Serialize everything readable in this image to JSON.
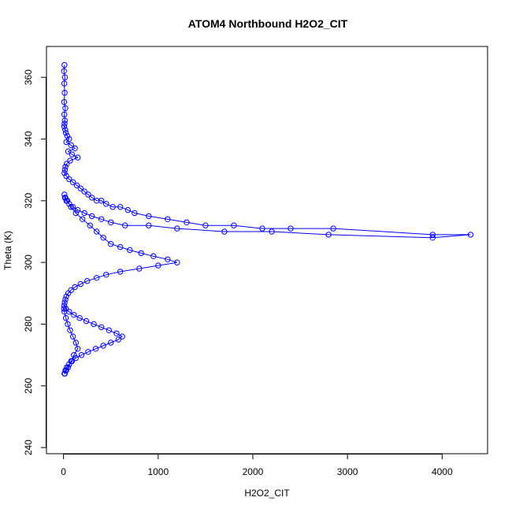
{
  "chart_data": {
    "type": "scatter",
    "title": "ATOM4 Northbound H2O2_CIT",
    "xlabel": "H2O2_CIT",
    "ylabel": "Theta (K)",
    "xlim": [
      -180,
      4480
    ],
    "ylim": [
      238,
      370
    ],
    "x_ticks": [
      0,
      1000,
      2000,
      3000,
      4000
    ],
    "y_ticks": [
      240,
      260,
      280,
      300,
      320,
      340,
      360
    ],
    "color": "#0000ff",
    "marker": "open-circle",
    "connected": true,
    "series": [
      {
        "x": [
          10,
          5,
          15,
          8,
          12,
          6,
          20,
          9,
          14,
          11,
          7,
          18,
          25,
          40,
          60,
          30,
          80,
          120,
          50,
          90,
          150,
          70,
          35,
          20,
          15,
          10,
          30,
          60,
          100,
          140,
          180,
          220,
          260,
          300,
          350,
          400,
          450,
          520,
          600,
          680,
          750,
          900,
          1100,
          1300,
          1500,
          1800,
          2100,
          2400,
          2850,
          3900,
          4300,
          3900,
          2800,
          2200,
          1700,
          1200,
          900,
          650,
          500,
          400,
          300,
          220,
          150,
          100,
          60,
          30,
          15,
          10,
          20,
          40,
          80,
          130,
          200,
          280,
          350,
          420,
          500,
          600,
          700,
          820,
          950,
          1100,
          1200,
          1000,
          800,
          600,
          450,
          350,
          250,
          180,
          120,
          80,
          50,
          30,
          20,
          12,
          8,
          25,
          60,
          110,
          170,
          240,
          320,
          400,
          480,
          560,
          620,
          580,
          500,
          420,
          340,
          260,
          190,
          130,
          90,
          60,
          35,
          20,
          10,
          15,
          30,
          50,
          80,
          110,
          150,
          130,
          100,
          70,
          45,
          25,
          10,
          5
        ],
        "y": [
          364,
          362,
          360,
          358,
          355,
          352,
          350,
          348,
          346,
          345,
          344,
          343,
          342,
          341,
          340,
          339,
          338,
          337,
          336,
          335,
          334,
          333,
          332,
          331,
          330,
          329,
          328,
          327,
          326,
          325,
          324,
          323,
          322,
          321,
          320,
          320,
          319,
          318,
          318,
          317,
          316,
          315,
          314,
          313,
          312,
          312,
          311,
          311,
          311,
          309,
          309,
          308,
          309,
          310,
          310,
          311,
          312,
          312,
          313,
          314,
          315,
          316,
          317,
          318,
          319,
          320,
          321,
          322,
          321,
          320,
          318,
          316,
          314,
          312,
          310,
          308,
          306,
          305,
          304,
          303,
          302,
          301,
          300,
          299,
          298,
          297,
          296,
          295,
          294,
          293,
          292,
          291,
          290,
          289,
          288,
          287,
          286,
          285,
          284,
          283,
          282,
          281,
          280,
          279,
          278,
          277,
          276,
          275,
          274,
          273,
          272,
          271,
          270,
          269,
          268,
          267,
          266,
          265,
          264,
          264,
          265,
          266,
          268,
          270,
          272,
          274,
          276,
          278,
          280,
          282,
          284,
          285
        ]
      }
    ]
  }
}
